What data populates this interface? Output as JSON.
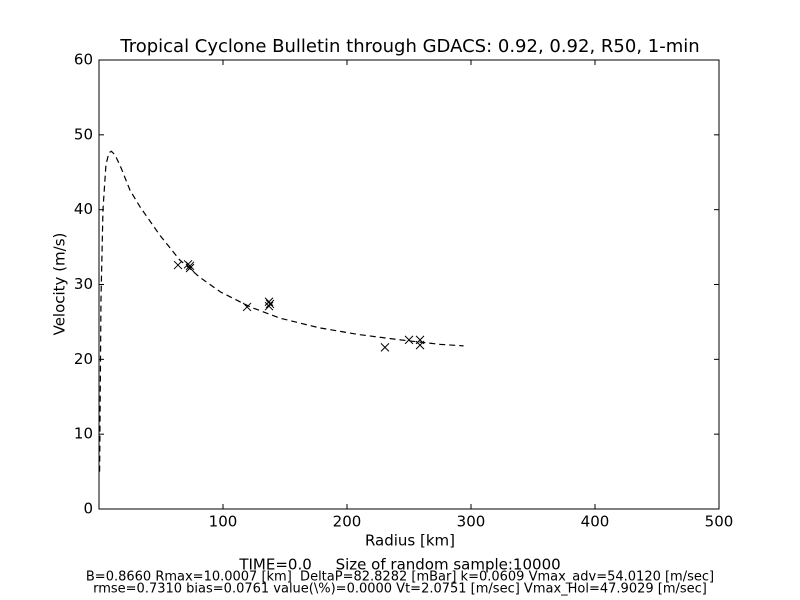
{
  "chart_data": {
    "type": "scatter",
    "title": "Tropical Cyclone Bulletin through GDACS: 0.92, 0.92, R50, 1-min",
    "x_label": "Radius [km]",
    "y_label": "Velocity (m/s)",
    "annotations": [
      "TIME=0.0     Size of random sample:10000",
      "B=0.8660 Rmax=10.0007 [km]  DeltaP=82.8282 [mBar] k=0.0609 Vmax_adv=54.0120 [m/sec]",
      "rmse=0.7310 bias=0.0761 value(\\%)=0.0000 Vt=2.0751 [m/sec] Vmax_Hol=47.9029 [m/sec]"
    ],
    "xlim": [
      0,
      500
    ],
    "xticks": [
      100,
      200,
      300,
      400,
      500
    ],
    "ylim": [
      0,
      60
    ],
    "yticks": [
      0,
      10,
      20,
      30,
      40,
      50,
      60
    ],
    "series": [
      {
        "marker": "x",
        "color": "#000000",
        "x": [
          63.7,
          71.8,
          73.4,
          73.4,
          119.4,
          137.1,
          137.1,
          137.9,
          230.6,
          250,
          258.9,
          258.9
        ],
        "values": [
          32.6,
          32.7,
          32.2,
          32.5,
          27.0,
          27.7,
          27.1,
          27.4,
          21.6,
          22.6,
          22.6,
          21.9
        ]
      },
      {
        "linestyle": "dashed",
        "color": "#000000",
        "x": [
          0.5,
          1.6,
          3.2,
          5.6,
          8,
          10,
          13,
          18,
          25,
          33,
          49,
          65,
          81,
          98,
          122,
          146,
          178,
          210,
          243,
          275,
          294
        ],
        "values": [
          5,
          28,
          40,
          46,
          47.6,
          47.8,
          47.3,
          45.5,
          42.6,
          40.4,
          36.6,
          33.3,
          31.0,
          29.0,
          27.0,
          25.5,
          24.2,
          23.3,
          22.6,
          22.0,
          21.8
        ]
      }
    ]
  }
}
